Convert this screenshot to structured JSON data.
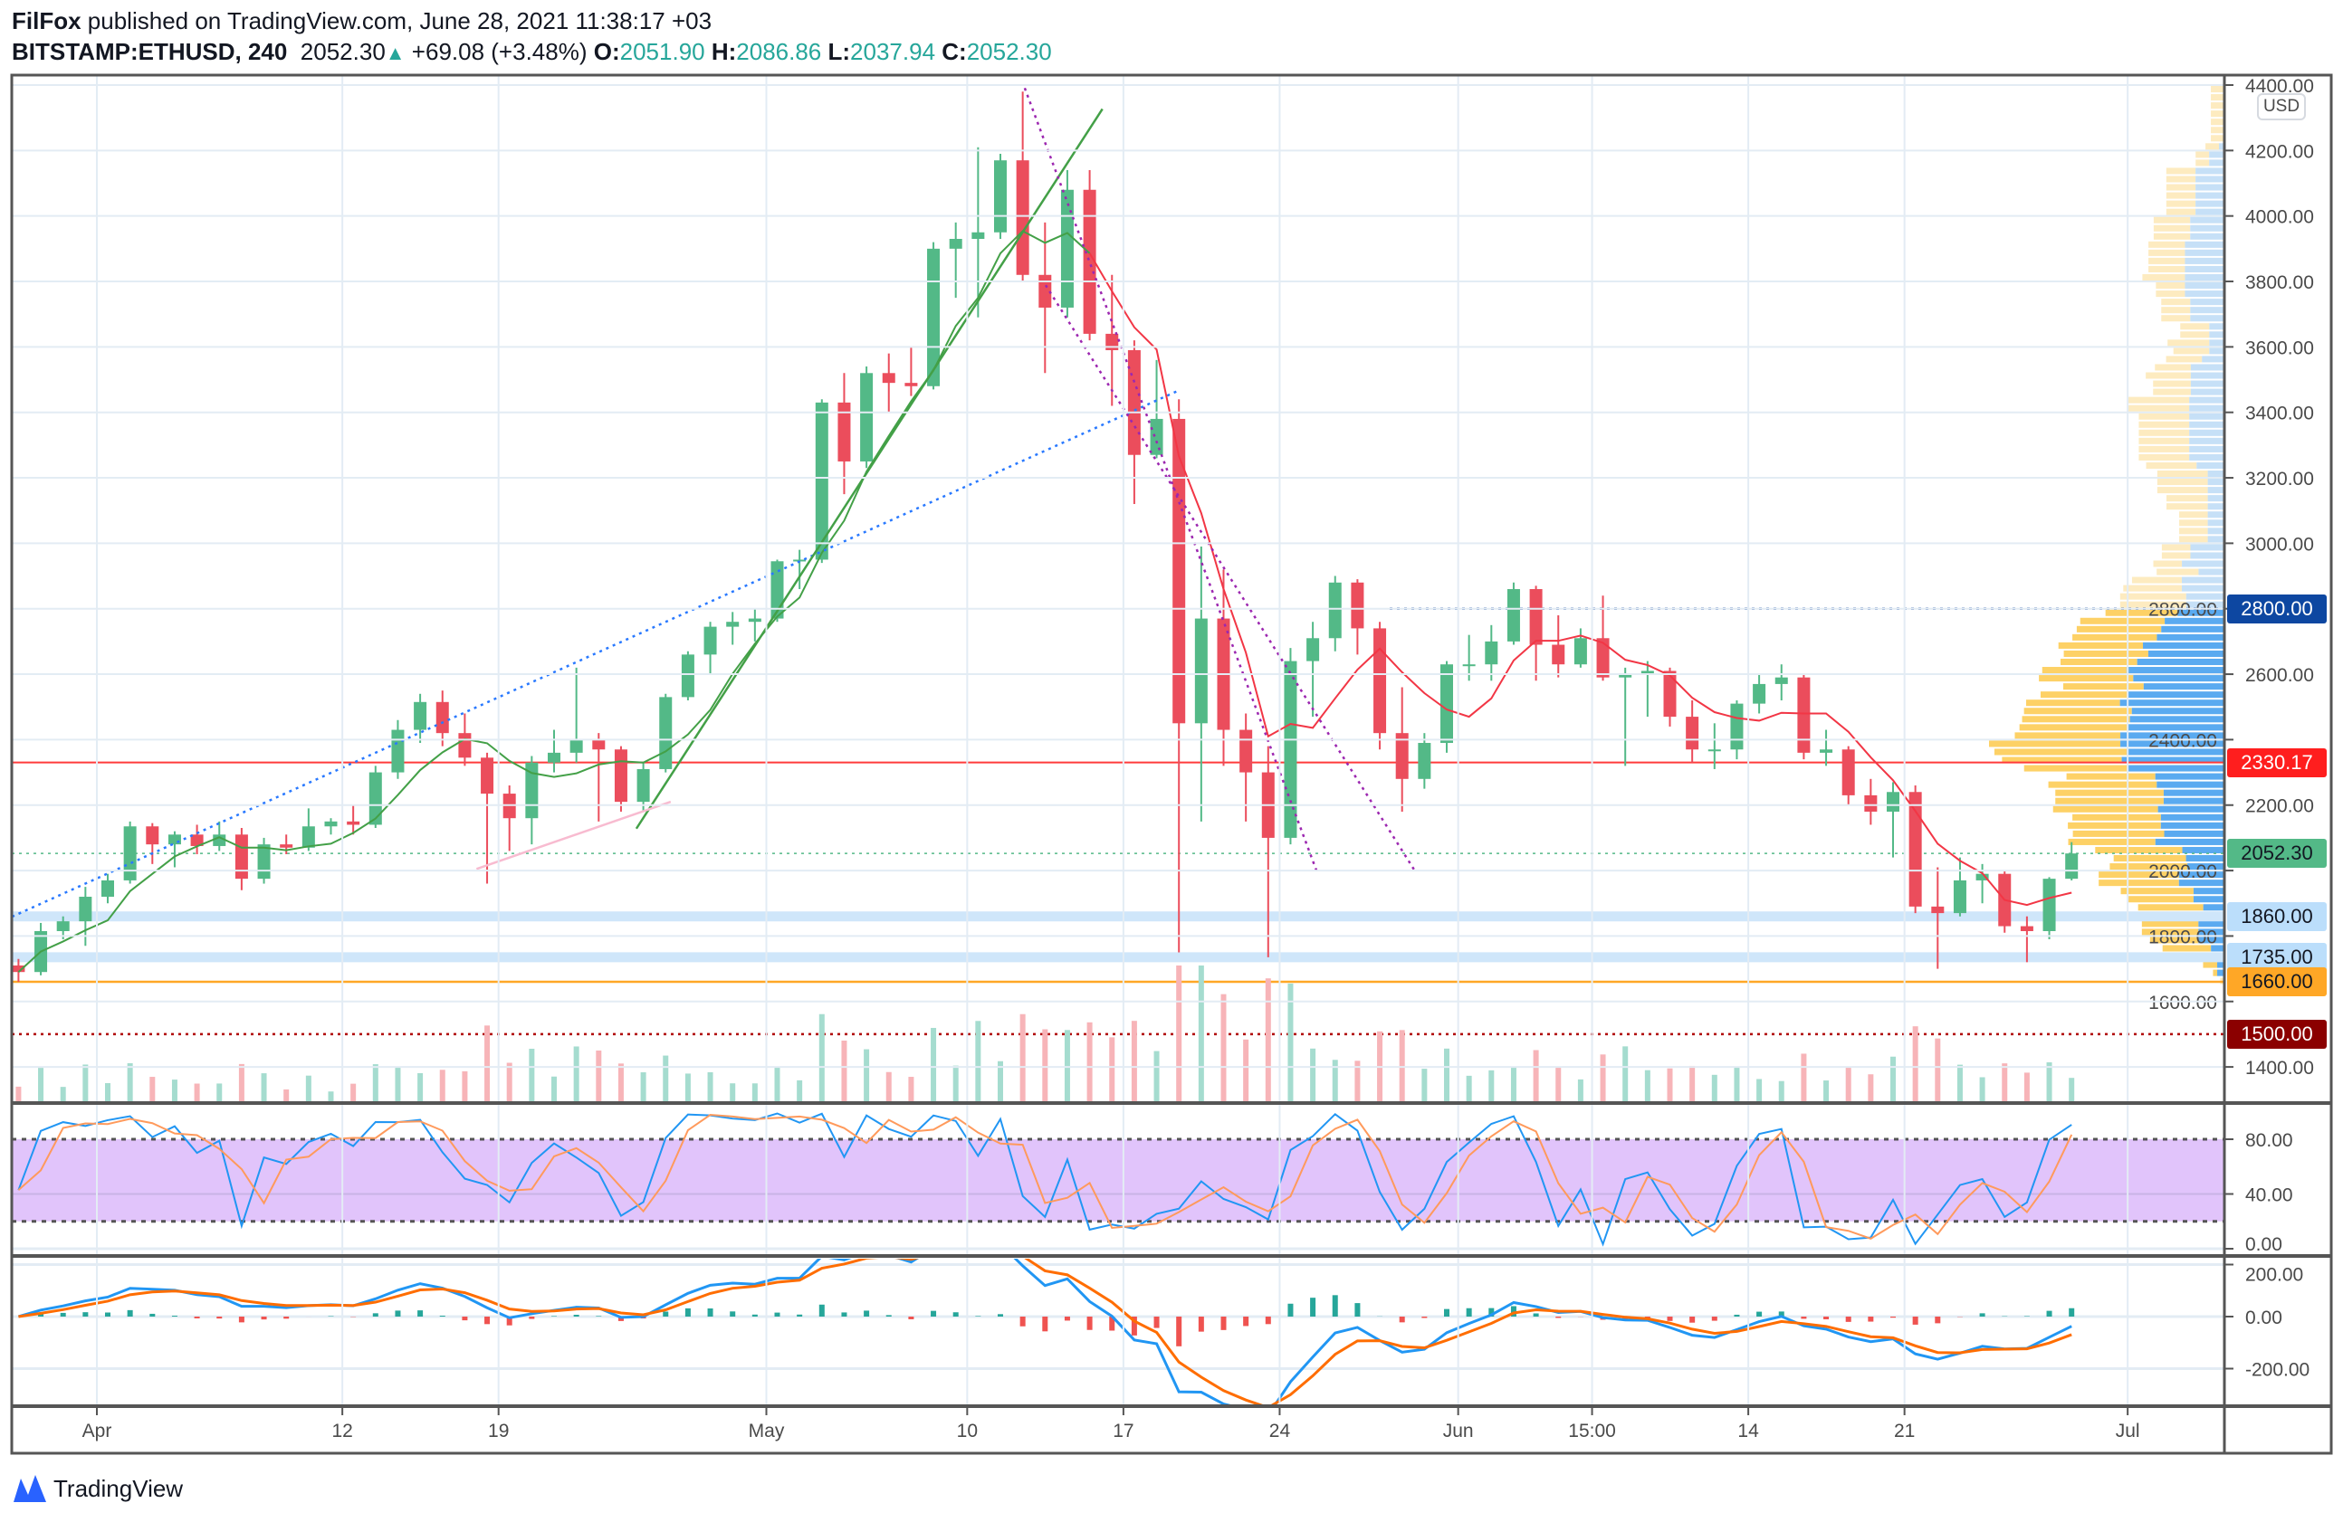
{
  "header": {
    "author": "FilFox",
    "published_text": "published on TradingView.com, June 28, 2021 11:38:17 +03",
    "symbol": "BITSTAMP:ETHUSD, 240",
    "last": "2052.30",
    "change": "+69.08 (+3.48%)",
    "o_label": "O:",
    "o": "2051.90",
    "h_label": "H:",
    "h": "2086.86",
    "l_label": "L:",
    "l": "2037.94",
    "c_label": "C:",
    "c": "2052.30"
  },
  "currency_badge": "USD",
  "branding": "TradingView",
  "colors": {
    "up": "#53b987",
    "down": "#eb4d5c",
    "accent_green": "#26a69a",
    "rsi_band": "#e1c4fb"
  },
  "price_labels": [
    {
      "text": "2800.00",
      "bg": "#0d47a1",
      "fg": "#ffffff",
      "price": 2800
    },
    {
      "text": "2330.17",
      "bg": "#ff1e1e",
      "fg": "#ffffff",
      "price": 2330.17
    },
    {
      "text": "2052.30",
      "bg": "#53b987",
      "fg": "#131722",
      "price": 2052.3
    },
    {
      "text": "1860.00",
      "bg": "#bbdefb",
      "fg": "#131722",
      "price": 1860
    },
    {
      "text": "1735.00",
      "bg": "#bbdefb",
      "fg": "#131722",
      "price": 1735
    },
    {
      "text": "1660.00",
      "bg": "#ffa726",
      "fg": "#131722",
      "price": 1660
    },
    {
      "text": "1500.00",
      "bg": "#8b0000",
      "fg": "#ffffff",
      "price": 1500
    }
  ],
  "chart_data": {
    "type": "candlestick",
    "symbol": "BITSTAMP:ETHUSD",
    "ylim": [
      1300,
      4450
    ],
    "y_ticks": [
      "4400.00",
      "4200.00",
      "4000.00",
      "3800.00",
      "3600.00",
      "3400.00",
      "3200.00",
      "3000.00",
      "2800.00",
      "2600.00",
      "2400.00",
      "2200.00",
      "2000.00",
      "1800.00",
      "1600.00",
      "1400.00"
    ],
    "x_ticks": [
      "Apr",
      "12",
      "19",
      "May",
      "10",
      "17",
      "24",
      "Jun",
      "15:00",
      "14",
      "21",
      "Jul"
    ],
    "grid": true,
    "ohlc_daily": [
      [
        "Mar 28",
        1710,
        1730,
        1660,
        1690
      ],
      [
        "Mar 29",
        1690,
        1840,
        1680,
        1815
      ],
      [
        "Mar 30",
        1815,
        1860,
        1790,
        1845
      ],
      [
        "Mar 31",
        1845,
        1950,
        1770,
        1920
      ],
      [
        "Apr 1",
        1920,
        1990,
        1900,
        1970
      ],
      [
        "Apr 2",
        1970,
        2150,
        1960,
        2135
      ],
      [
        "Apr 3",
        2135,
        2145,
        2020,
        2080
      ],
      [
        "Apr 4",
        2080,
        2120,
        2010,
        2110
      ],
      [
        "Apr 5",
        2110,
        2140,
        2050,
        2075
      ],
      [
        "Apr 6",
        2075,
        2150,
        2060,
        2110
      ],
      [
        "Apr 7",
        2110,
        2130,
        1940,
        1975
      ],
      [
        "Apr 8",
        1975,
        2100,
        1960,
        2080
      ],
      [
        "Apr 9",
        2080,
        2110,
        2050,
        2070
      ],
      [
        "Apr 10",
        2070,
        2190,
        2060,
        2135
      ],
      [
        "Apr 11",
        2135,
        2160,
        2110,
        2150
      ],
      [
        "Apr 12",
        2150,
        2200,
        2110,
        2140
      ],
      [
        "Apr 13",
        2140,
        2320,
        2130,
        2300
      ],
      [
        "Apr 14",
        2300,
        2460,
        2280,
        2430
      ],
      [
        "Apr 15",
        2430,
        2540,
        2390,
        2515
      ],
      [
        "Apr 16",
        2515,
        2550,
        2380,
        2420
      ],
      [
        "Apr 17",
        2420,
        2480,
        2320,
        2345
      ],
      [
        "Apr 18",
        2345,
        2360,
        1960,
        2235
      ],
      [
        "Apr 19",
        2235,
        2260,
        2060,
        2160
      ],
      [
        "Apr 20",
        2160,
        2350,
        2080,
        2330
      ],
      [
        "Apr 21",
        2330,
        2430,
        2300,
        2360
      ],
      [
        "Apr 22",
        2360,
        2620,
        2330,
        2400
      ],
      [
        "Apr 23",
        2400,
        2420,
        2150,
        2370
      ],
      [
        "Apr 24",
        2370,
        2380,
        2180,
        2210
      ],
      [
        "Apr 25",
        2210,
        2330,
        2180,
        2310
      ],
      [
        "Apr 26",
        2310,
        2540,
        2300,
        2530
      ],
      [
        "Apr 27",
        2530,
        2670,
        2520,
        2660
      ],
      [
        "Apr 28",
        2660,
        2760,
        2600,
        2745
      ],
      [
        "Apr 29",
        2745,
        2790,
        2690,
        2760
      ],
      [
        "Apr 30",
        2760,
        2800,
        2700,
        2770
      ],
      [
        "May 1",
        2770,
        2950,
        2760,
        2945
      ],
      [
        "May 2",
        2945,
        2980,
        2860,
        2950
      ],
      [
        "May 3",
        2950,
        3440,
        2940,
        3430
      ],
      [
        "May 4",
        3430,
        3520,
        3150,
        3250
      ],
      [
        "May 5",
        3250,
        3540,
        3230,
        3520
      ],
      [
        "May 6",
        3520,
        3580,
        3400,
        3490
      ],
      [
        "May 7",
        3490,
        3600,
        3450,
        3480
      ],
      [
        "May 8",
        3480,
        3920,
        3470,
        3900
      ],
      [
        "May 9",
        3900,
        3980,
        3750,
        3930
      ],
      [
        "May 10",
        3930,
        4210,
        3690,
        3950
      ],
      [
        "May 11",
        3950,
        4190,
        3930,
        4170
      ],
      [
        "May 12",
        4170,
        4380,
        3800,
        3820
      ],
      [
        "May 13",
        3820,
        3980,
        3520,
        3720
      ],
      [
        "May 14",
        3720,
        4140,
        3690,
        4080
      ],
      [
        "May 15",
        4080,
        4140,
        3620,
        3640
      ],
      [
        "May 16",
        3640,
        3820,
        3420,
        3590
      ],
      [
        "May 17",
        3590,
        3620,
        3120,
        3270
      ],
      [
        "May 18",
        3270,
        3560,
        3260,
        3380
      ],
      [
        "May 19",
        3380,
        3440,
        1750,
        2450
      ],
      [
        "May 20",
        2450,
        2990,
        2150,
        2770
      ],
      [
        "May 21",
        2770,
        2920,
        2320,
        2430
      ],
      [
        "May 22",
        2430,
        2480,
        2150,
        2300
      ],
      [
        "May 23",
        2300,
        2380,
        1735,
        2100
      ],
      [
        "May 24",
        2100,
        2680,
        2080,
        2640
      ],
      [
        "May 25",
        2640,
        2760,
        2470,
        2710
      ],
      [
        "May 26",
        2710,
        2900,
        2670,
        2880
      ],
      [
        "May 27",
        2880,
        2890,
        2660,
        2740
      ],
      [
        "May 28",
        2740,
        2760,
        2370,
        2420
      ],
      [
        "May 29",
        2420,
        2560,
        2180,
        2280
      ],
      [
        "May 30",
        2280,
        2420,
        2250,
        2390
      ],
      [
        "May 31",
        2390,
        2640,
        2360,
        2630
      ],
      [
        "Jun 1",
        2630,
        2720,
        2580,
        2630
      ],
      [
        "Jun 2",
        2630,
        2750,
        2580,
        2700
      ],
      [
        "Jun 3",
        2700,
        2880,
        2690,
        2860
      ],
      [
        "Jun 4",
        2860,
        2870,
        2580,
        2690
      ],
      [
        "Jun 5",
        2690,
        2780,
        2590,
        2630
      ],
      [
        "Jun 6",
        2630,
        2740,
        2620,
        2710
      ],
      [
        "Jun 7",
        2710,
        2840,
        2580,
        2590
      ],
      [
        "Jun 8",
        2590,
        2620,
        2320,
        2600
      ],
      [
        "Jun 9",
        2600,
        2640,
        2470,
        2610
      ],
      [
        "Jun 10",
        2610,
        2620,
        2440,
        2470
      ],
      [
        "Jun 11",
        2470,
        2520,
        2330,
        2370
      ],
      [
        "Jun 12",
        2370,
        2450,
        2310,
        2370
      ],
      [
        "Jun 13",
        2370,
        2520,
        2340,
        2510
      ],
      [
        "Jun 14",
        2510,
        2600,
        2480,
        2570
      ],
      [
        "Jun 15",
        2570,
        2630,
        2520,
        2590
      ],
      [
        "Jun 16",
        2590,
        2600,
        2340,
        2360
      ],
      [
        "Jun 17",
        2360,
        2430,
        2320,
        2370
      ],
      [
        "Jun 18",
        2370,
        2380,
        2200,
        2230
      ],
      [
        "Jun 19",
        2230,
        2280,
        2140,
        2180
      ],
      [
        "Jun 20",
        2180,
        2270,
        2040,
        2240
      ],
      [
        "Jun 21",
        2240,
        2260,
        1870,
        1890
      ],
      [
        "Jun 22",
        1890,
        2010,
        1700,
        1870
      ],
      [
        "Jun 23",
        1870,
        2040,
        1860,
        1970
      ],
      [
        "Jun 24",
        1970,
        2020,
        1900,
        1990
      ],
      [
        "Jun 25",
        1990,
        2000,
        1810,
        1830
      ],
      [
        "Jun 26",
        1830,
        1860,
        1720,
        1815
      ],
      [
        "Jun 27",
        1815,
        1980,
        1790,
        1975
      ],
      [
        "Jun 28",
        1975,
        2086.86,
        1970,
        2052.3
      ]
    ],
    "horizontal_levels": [
      2800,
      2330.17,
      2052.3,
      1860,
      1735,
      1660,
      1500
    ],
    "stoch_rsi": {
      "y_ticks": [
        "80.00",
        "40.00",
        "0.00"
      ],
      "band": [
        20,
        80
      ],
      "ylim": [
        0,
        100
      ]
    },
    "macd": {
      "y_ticks": [
        "200.00",
        "0.00",
        "-200.00"
      ],
      "ylim": [
        -330,
        220
      ]
    }
  }
}
